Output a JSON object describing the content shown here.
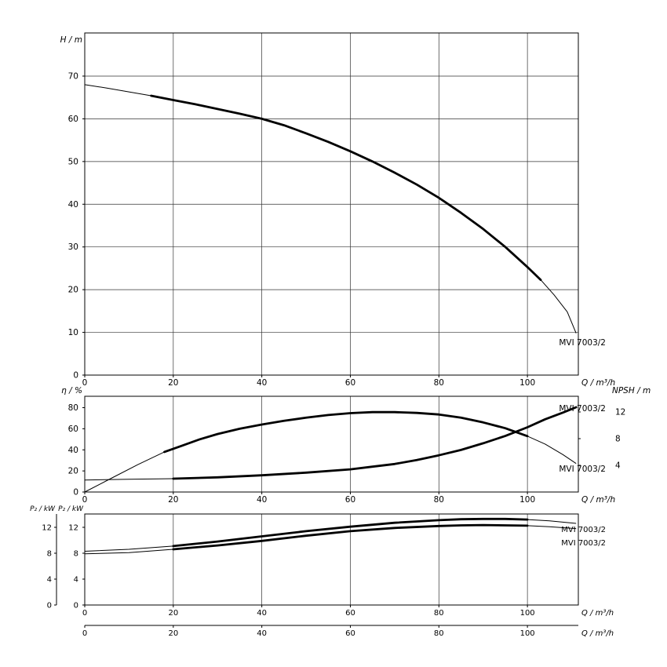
{
  "page": {
    "background": "#ffffff",
    "line_color": "#000000",
    "grid_color": "#333333"
  },
  "pump_model": "MVI 7003/2",
  "chart_data": [
    {
      "type": "line",
      "id": "head",
      "title": "",
      "ylabel": "H / m",
      "xlabel": "Q / m³/h",
      "xlim": [
        0,
        111.5
      ],
      "ylim": [
        0,
        80.1
      ],
      "x_ticks": [
        0,
        20,
        40,
        60,
        80,
        100
      ],
      "y_ticks": [
        0,
        10,
        20,
        30,
        40,
        50,
        60,
        70
      ],
      "grid": "both",
      "legend_position": "none",
      "series": [
        {
          "name": "head-curve",
          "label": "MVI 7003/2",
          "axis": "left",
          "bold_range": [
            15,
            104
          ],
          "x": [
            0,
            5,
            10,
            15,
            20,
            25,
            30,
            35,
            40,
            45,
            50,
            55,
            60,
            65,
            70,
            75,
            80,
            85,
            90,
            95,
            100,
            103,
            106,
            109,
            111
          ],
          "y": [
            68,
            67.2,
            66.3,
            65.4,
            64.4,
            63.4,
            62.3,
            61.2,
            60,
            58.5,
            56.6,
            54.6,
            52.4,
            50,
            47.4,
            44.6,
            41.5,
            38,
            34.2,
            30,
            25.3,
            22.3,
            18.8,
            14.8,
            9.8
          ]
        }
      ]
    },
    {
      "type": "line",
      "id": "efficiency-npsh",
      "title": "",
      "ylabel": "η / %",
      "ylabel_right": "NPSH / m",
      "xlabel": "Q / m³/h",
      "xlim": [
        0,
        111.5
      ],
      "ylim": [
        0,
        90.8
      ],
      "ylim_right": [
        0,
        14.35
      ],
      "x_ticks": [
        0,
        20,
        40,
        60,
        80,
        100
      ],
      "y_ticks": [
        0,
        20,
        40,
        60,
        80
      ],
      "y_ticks_right": [
        4,
        8,
        12
      ],
      "grid": "x",
      "legend_position": "none",
      "series": [
        {
          "name": "efficiency-curve",
          "label": "MVI 7003/2",
          "axis": "left",
          "bold_range": [
            18,
            103
          ],
          "x": [
            0,
            6,
            12,
            18,
            22,
            26,
            30,
            35,
            40,
            45,
            50,
            55,
            60,
            65,
            70,
            75,
            80,
            85,
            90,
            95,
            100,
            104,
            108,
            111
          ],
          "y": [
            0,
            13,
            26,
            38,
            44,
            50,
            55,
            60,
            64,
            67.5,
            70.5,
            73,
            74.8,
            75.8,
            75.8,
            75,
            73.5,
            70.5,
            66,
            60.5,
            53,
            45.5,
            35.5,
            27
          ]
        },
        {
          "name": "npsh-curve",
          "label": "MVI 7003/2",
          "axis": "right",
          "bold_range": [
            14,
            111
          ],
          "x": [
            0,
            10,
            20,
            30,
            40,
            50,
            60,
            65,
            70,
            75,
            80,
            85,
            90,
            95,
            100,
            104,
            108,
            111
          ],
          "y": [
            1.8,
            1.9,
            2.0,
            2.2,
            2.5,
            2.9,
            3.4,
            3.8,
            4.2,
            4.8,
            5.5,
            6.3,
            7.3,
            8.4,
            9.7,
            10.9,
            11.9,
            12.7
          ]
        }
      ]
    },
    {
      "type": "line",
      "id": "power",
      "title": "",
      "ylabel": "P₂ / kW",
      "ylabel_outer": "P₂ / kW",
      "xlabel": "Q / m³/h",
      "xlabel2": "Q / m³/h",
      "xlim": [
        0,
        111.5
      ],
      "ylim": [
        0,
        14.06
      ],
      "x_ticks": [
        0,
        20,
        40,
        60,
        80,
        100
      ],
      "y_ticks": [
        0,
        4,
        8,
        12
      ],
      "y_ticks_outer": [
        0,
        4,
        8,
        12
      ],
      "grid": "x",
      "legend_position": "none",
      "series": [
        {
          "name": "p2-upper-curve",
          "label": "MVI 7003/2",
          "axis": "left",
          "bold_range": [
            15,
            104
          ],
          "x": [
            0,
            10,
            20,
            30,
            40,
            50,
            60,
            70,
            80,
            85,
            90,
            95,
            100,
            105,
            111
          ],
          "y": [
            8.3,
            8.6,
            9.1,
            9.8,
            10.6,
            11.4,
            12.1,
            12.7,
            13.1,
            13.25,
            13.3,
            13.3,
            13.2,
            13.0,
            12.6
          ]
        },
        {
          "name": "p2-lower-curve",
          "label": "MVI 7003/2",
          "axis": "left",
          "bold_range": [
            15,
            104
          ],
          "x": [
            0,
            10,
            20,
            30,
            40,
            50,
            60,
            70,
            80,
            85,
            90,
            95,
            100,
            105,
            111
          ],
          "y": [
            7.9,
            8.1,
            8.6,
            9.2,
            9.9,
            10.7,
            11.4,
            11.9,
            12.2,
            12.3,
            12.35,
            12.3,
            12.25,
            12.1,
            11.8
          ]
        }
      ]
    }
  ]
}
